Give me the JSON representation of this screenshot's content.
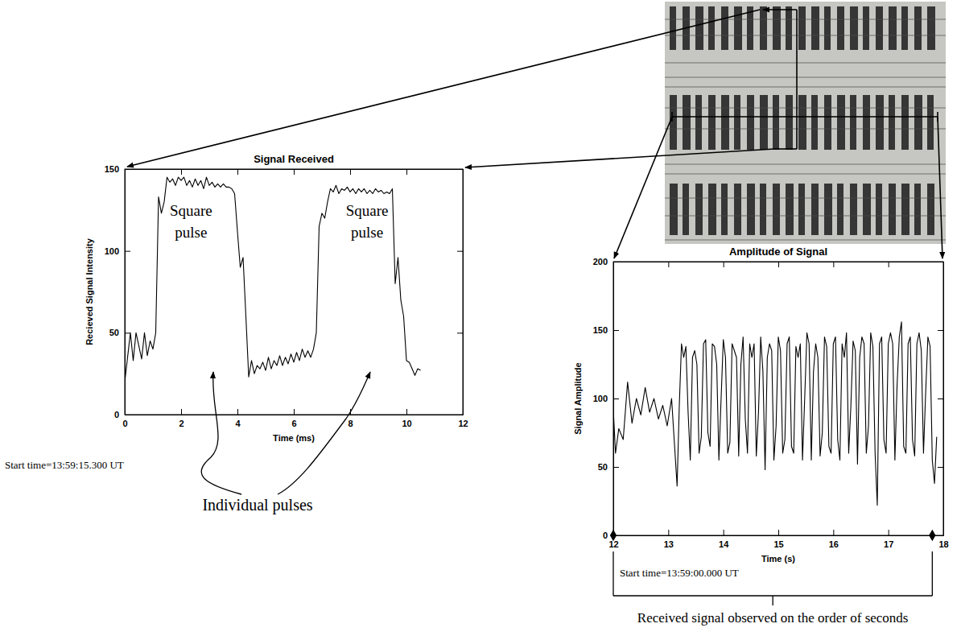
{
  "chart_data": [
    {
      "type": "line",
      "title": "Signal Received",
      "x_label": "Time (ms)",
      "y_label": "Recieved Signal Intensity",
      "color": "#000000",
      "xlim": [
        0,
        12
      ],
      "xticks": [
        0,
        2,
        4,
        6,
        8,
        10,
        12
      ],
      "ylim": [
        0,
        150
      ],
      "yticks": [
        0,
        50,
        100,
        150
      ],
      "x": [
        0,
        0.1,
        0.2,
        0.3,
        0.4,
        0.5,
        0.6,
        0.7,
        0.8,
        0.9,
        1,
        1.1,
        1.2,
        1.3,
        1.4,
        1.5,
        1.6,
        1.7,
        1.8,
        1.9,
        2,
        2.1,
        2.2,
        2.3,
        2.4,
        2.5,
        2.6,
        2.7,
        2.8,
        2.9,
        3,
        3.1,
        3.2,
        3.3,
        3.4,
        3.5,
        3.6,
        3.7,
        3.8,
        3.9,
        4,
        4.1,
        4.2,
        4.3,
        4.4,
        4.5,
        4.6,
        4.7,
        4.8,
        4.9,
        5,
        5.1,
        5.2,
        5.3,
        5.4,
        5.5,
        5.6,
        5.7,
        5.8,
        5.9,
        6,
        6.1,
        6.2,
        6.3,
        6.4,
        6.5,
        6.6,
        6.7,
        6.8,
        6.9,
        7,
        7.1,
        7.2,
        7.3,
        7.4,
        7.5,
        7.6,
        7.7,
        7.8,
        7.9,
        8,
        8.1,
        8.2,
        8.3,
        8.4,
        8.5,
        8.6,
        8.7,
        8.8,
        8.9,
        9,
        9.1,
        9.2,
        9.3,
        9.4,
        9.5,
        9.6,
        9.7,
        9.8,
        9.9,
        10,
        10.1,
        10.2,
        10.3,
        10.4,
        10.5
      ],
      "values": [
        20,
        35,
        50,
        33,
        50,
        42,
        34,
        50,
        36,
        45,
        40,
        50,
        133,
        123,
        130,
        145,
        142,
        144,
        140,
        145,
        143,
        145,
        140,
        143,
        139,
        144,
        140,
        143,
        138,
        145,
        140,
        142,
        139,
        141,
        139,
        141,
        139,
        139,
        138,
        135,
        112,
        90,
        96,
        60,
        23,
        33,
        25,
        30,
        28,
        32,
        27,
        35,
        28,
        33,
        30,
        36,
        30,
        35,
        31,
        37,
        32,
        38,
        33,
        40,
        35,
        39,
        35,
        40,
        50,
        115,
        123,
        120,
        130,
        138,
        136,
        140,
        135,
        138,
        137,
        139,
        136,
        138,
        135,
        138,
        136,
        138,
        135,
        137,
        135,
        138,
        136,
        137,
        135,
        136,
        135,
        138,
        80,
        96,
        70,
        60,
        33,
        32,
        28,
        24,
        28,
        27
      ],
      "pulse_labels": [
        "Square pulse",
        "Square pulse"
      ],
      "callout": "Individual pulses",
      "start_time": "Start time=13:59:15.300 UT"
    },
    {
      "type": "line",
      "title": "Amplitude of Signal",
      "x_label": "Time (s)",
      "y_label": "Signal Amplitude",
      "color": "#000000",
      "xlim": [
        12,
        18
      ],
      "xticks": [
        12,
        13,
        14,
        15,
        16,
        17,
        18
      ],
      "ylim": [
        0,
        200
      ],
      "yticks": [
        0,
        50,
        100,
        150,
        200
      ],
      "x": [
        12,
        12.04,
        12.1,
        12.18,
        12.26,
        12.34,
        12.42,
        12.5,
        12.58,
        12.66,
        12.74,
        12.82,
        12.9,
        12.98,
        13.06,
        13.16,
        13.2,
        13.24,
        13.28,
        13.32,
        13.36,
        13.4,
        13.44,
        13.48,
        13.52,
        13.56,
        13.6,
        13.64,
        13.68,
        13.72,
        13.76,
        13.8,
        13.84,
        13.88,
        13.92,
        13.96,
        14,
        14.04,
        14.08,
        14.12,
        14.16,
        14.2,
        14.24,
        14.28,
        14.32,
        14.36,
        14.4,
        14.44,
        14.48,
        14.52,
        14.56,
        14.6,
        14.64,
        14.68,
        14.72,
        14.76,
        14.8,
        14.84,
        14.88,
        14.92,
        14.96,
        15,
        15.04,
        15.08,
        15.12,
        15.16,
        15.2,
        15.24,
        15.28,
        15.32,
        15.36,
        15.4,
        15.44,
        15.48,
        15.52,
        15.56,
        15.6,
        15.64,
        15.68,
        15.72,
        15.76,
        15.8,
        15.84,
        15.88,
        15.92,
        15.96,
        16,
        16.04,
        16.08,
        16.12,
        16.16,
        16.2,
        16.24,
        16.28,
        16.32,
        16.36,
        16.4,
        16.44,
        16.48,
        16.52,
        16.56,
        16.6,
        16.64,
        16.68,
        16.72,
        16.76,
        16.8,
        16.84,
        16.88,
        16.92,
        16.96,
        17,
        17.04,
        17.08,
        17.12,
        17.16,
        17.2,
        17.24,
        17.28,
        17.32,
        17.36,
        17.4,
        17.44,
        17.48,
        17.52,
        17.56,
        17.6,
        17.64,
        17.68,
        17.72,
        17.76,
        17.8,
        17.84,
        17.88
      ],
      "values": [
        92,
        60,
        78,
        70,
        112,
        82,
        100,
        88,
        108,
        90,
        100,
        85,
        95,
        80,
        100,
        36,
        95,
        140,
        130,
        138,
        90,
        55,
        130,
        135,
        125,
        60,
        72,
        140,
        143,
        75,
        65,
        140,
        138,
        125,
        55,
        100,
        143,
        130,
        60,
        68,
        140,
        135,
        130,
        58,
        125,
        145,
        85,
        60,
        140,
        130,
        140,
        58,
        90,
        145,
        120,
        48,
        130,
        140,
        135,
        55,
        80,
        145,
        135,
        60,
        70,
        140,
        145,
        65,
        60,
        138,
        130,
        140,
        55,
        100,
        148,
        140,
        55,
        120,
        140,
        130,
        58,
        75,
        145,
        138,
        65,
        60,
        140,
        145,
        70,
        55,
        140,
        130,
        148,
        60,
        95,
        142,
        135,
        52,
        130,
        145,
        140,
        60,
        80,
        148,
        138,
        60,
        22,
        140,
        145,
        70,
        60,
        140,
        148,
        140,
        55,
        110,
        145,
        156,
        65,
        60,
        140,
        145,
        70,
        58,
        140,
        148,
        135,
        60,
        105,
        145,
        138,
        55,
        38,
        72
      ],
      "observed_span": [
        12,
        17.8
      ],
      "span_label": "Received signal observed on the order of seconds",
      "start_time": "Start time=13:59:00.000 UT"
    }
  ]
}
